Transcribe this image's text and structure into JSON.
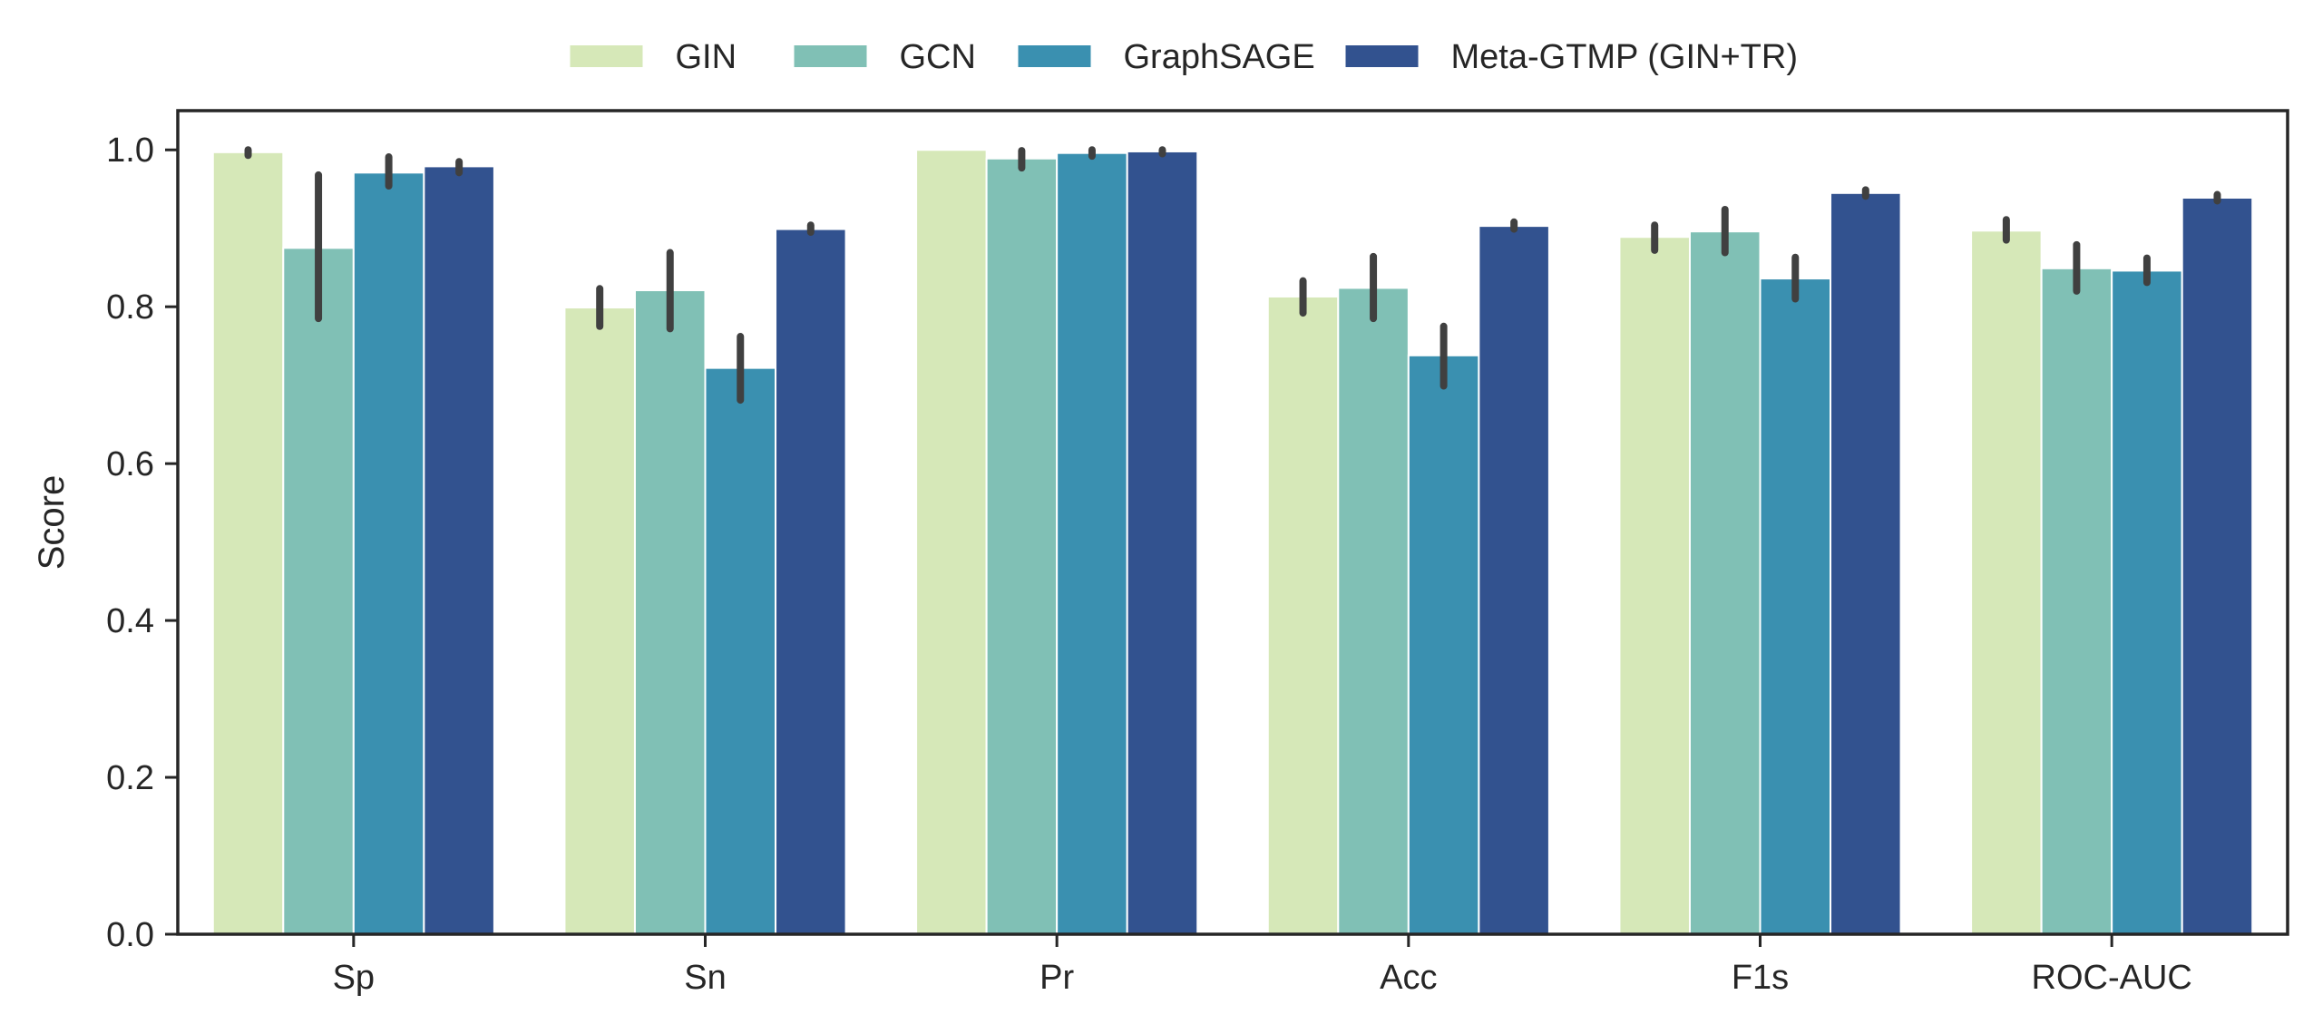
{
  "chart_data": {
    "type": "bar",
    "title": "",
    "xlabel": "",
    "ylabel": "Score",
    "ylim": [
      0.0,
      1.05
    ],
    "yticks": [
      "0.0",
      "0.2",
      "0.4",
      "0.6",
      "0.8",
      "1.0"
    ],
    "categories": [
      "Sp",
      "Sn",
      "Pr",
      "Acc",
      "F1s",
      "ROC-AUC"
    ],
    "legend_position": "top-center, outside plot",
    "grid": false,
    "series": [
      {
        "name": "GIN",
        "color": "#d6e8b8",
        "values": [
          0.997,
          0.799,
          1.0,
          0.813,
          0.889,
          0.897
        ],
        "error_low": [
          0.993,
          0.775,
          1.0,
          0.792,
          0.872,
          0.885
        ],
        "error_high": [
          1.0,
          0.823,
          1.0,
          0.833,
          0.904,
          0.911
        ]
      },
      {
        "name": "GCN",
        "color": "#80c0b5",
        "values": [
          0.875,
          0.821,
          0.989,
          0.824,
          0.896,
          0.849
        ],
        "error_low": [
          0.785,
          0.772,
          0.977,
          0.785,
          0.869,
          0.82
        ],
        "error_high": [
          0.968,
          0.869,
          0.999,
          0.864,
          0.924,
          0.879
        ]
      },
      {
        "name": "GraphSAGE",
        "color": "#3a90b0",
        "values": [
          0.971,
          0.722,
          0.996,
          0.738,
          0.836,
          0.846
        ],
        "error_low": [
          0.954,
          0.681,
          0.992,
          0.699,
          0.81,
          0.831
        ],
        "error_high": [
          0.991,
          0.762,
          1.0,
          0.775,
          0.863,
          0.862
        ]
      },
      {
        "name": "Meta-GTMP (GIN+TR)",
        "color": "#32528f",
        "values": [
          0.979,
          0.899,
          0.998,
          0.903,
          0.945,
          0.939
        ],
        "error_low": [
          0.971,
          0.895,
          0.995,
          0.899,
          0.941,
          0.935
        ],
        "error_high": [
          0.985,
          0.904,
          1.0,
          0.908,
          0.949,
          0.943
        ]
      }
    ]
  }
}
